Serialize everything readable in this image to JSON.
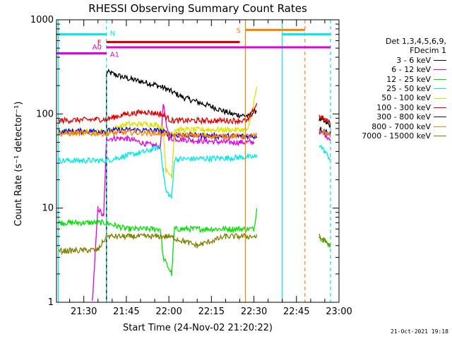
{
  "chart_data": {
    "type": "line",
    "title": "RHESSI Observing Summary Count Rates",
    "xlabel": "Start Time (24-Nov-02 21:20:22)",
    "ylabel": "Count Rate (s⁻¹ detector⁻¹)",
    "xscale": "time",
    "yscale": "log",
    "xlim": [
      "21:20:22",
      "23:00:00"
    ],
    "ylim": [
      1,
      1000
    ],
    "x_ticks": [
      "21:30",
      "21:45",
      "22:00",
      "22:15",
      "22:30",
      "22:45",
      "23:00"
    ],
    "y_ticks": [
      "1",
      "10",
      "100",
      "1000"
    ],
    "grid": false,
    "legend_position": "right",
    "legend_title": [
      "Det 1,3,4,5,6,9,",
      "FDecim 1"
    ],
    "series": [
      {
        "name": "3 - 6 keV",
        "color": "#000000",
        "points": [
          [
            "21:38",
            1
          ],
          [
            "21:38",
            280
          ],
          [
            "21:45",
            240
          ],
          [
            "21:55",
            205
          ],
          [
            "21:59",
            185
          ],
          [
            "22:05",
            150
          ],
          [
            "22:15",
            120
          ],
          [
            "22:22",
            100
          ],
          [
            "22:28",
            95
          ],
          [
            "22:31",
            110
          ],
          [
            "22:53",
            88
          ],
          [
            "22:57",
            75
          ]
        ]
      },
      {
        "name": "6 - 12 keV",
        "color": "#e000e0",
        "points": [
          [
            "21:33",
            1
          ],
          [
            "21:35",
            10
          ],
          [
            "21:37",
            8
          ],
          [
            "21:38",
            55
          ],
          [
            "21:45",
            55
          ],
          [
            "21:52",
            48
          ],
          [
            "21:57",
            45
          ],
          [
            "21:58",
            125
          ],
          [
            "22:00",
            55
          ],
          [
            "22:10",
            52
          ],
          [
            "22:20",
            50
          ],
          [
            "22:30",
            50
          ],
          [
            "22:53",
            65
          ],
          [
            "22:57",
            55
          ]
        ]
      },
      {
        "name": "12 - 25 keV",
        "color": "#00e000",
        "points": [
          [
            "21:21",
            7
          ],
          [
            "21:38",
            7
          ],
          [
            "21:45",
            6
          ],
          [
            "21:57",
            6
          ],
          [
            "21:58",
            3
          ],
          [
            "22:01",
            2
          ],
          [
            "22:02",
            6
          ],
          [
            "22:30",
            6
          ],
          [
            "22:31",
            10
          ],
          [
            "22:53",
            5
          ],
          [
            "22:57",
            4
          ]
        ]
      },
      {
        "name": "25 - 50 keV",
        "color": "#00e8e8",
        "points": [
          [
            "21:21",
            32
          ],
          [
            "21:38",
            32
          ],
          [
            "21:45",
            36
          ],
          [
            "21:52",
            40
          ],
          [
            "21:57",
            45
          ],
          [
            "21:58",
            25
          ],
          [
            "21:59",
            15
          ],
          [
            "22:01",
            13
          ],
          [
            "22:02",
            33
          ],
          [
            "22:20",
            34
          ],
          [
            "22:31",
            35
          ],
          [
            "22:53",
            48
          ],
          [
            "22:57",
            33
          ]
        ]
      },
      {
        "name": "50 - 100 keV",
        "color": "#e0e000",
        "points": [
          [
            "21:21",
            64
          ],
          [
            "21:38",
            65
          ],
          [
            "21:45",
            78
          ],
          [
            "21:55",
            78
          ],
          [
            "21:58",
            70
          ],
          [
            "21:59",
            25
          ],
          [
            "22:01",
            22
          ],
          [
            "22:02",
            68
          ],
          [
            "22:28",
            68
          ],
          [
            "22:31",
            190
          ],
          [
            "22:53",
            70
          ],
          [
            "22:57",
            60
          ]
        ]
      },
      {
        "name": "100 - 300 keV",
        "color": "#e00000",
        "points": [
          [
            "21:21",
            85
          ],
          [
            "21:38",
            88
          ],
          [
            "21:45",
            100
          ],
          [
            "21:52",
            105
          ],
          [
            "21:57",
            100
          ],
          [
            "22:01",
            85
          ],
          [
            "22:10",
            85
          ],
          [
            "22:28",
            85
          ],
          [
            "22:31",
            130
          ],
          [
            "22:53",
            95
          ],
          [
            "22:57",
            80
          ]
        ]
      },
      {
        "name": "300 - 800 keV",
        "color": "#0000e0",
        "points": [
          [
            "21:21",
            65
          ],
          [
            "21:38",
            66
          ],
          [
            "21:45",
            68
          ],
          [
            "21:57",
            66
          ],
          [
            "22:01",
            60
          ],
          [
            "22:20",
            58
          ],
          [
            "22:31",
            58
          ],
          [
            "22:53",
            70
          ],
          [
            "22:57",
            62
          ]
        ]
      },
      {
        "name": "800 - 7000 keV",
        "color": "#ff8000",
        "points": [
          [
            "21:21",
            62
          ],
          [
            "21:38",
            62
          ],
          [
            "21:45",
            64
          ],
          [
            "21:57",
            62
          ],
          [
            "22:01",
            60
          ],
          [
            "22:20",
            58
          ],
          [
            "22:31",
            58
          ],
          [
            "22:53",
            66
          ],
          [
            "22:57",
            60
          ]
        ]
      },
      {
        "name": "7000 - 15000 keV",
        "color": "#808000",
        "points": [
          [
            "21:21",
            3.5
          ],
          [
            "21:35",
            3.6
          ],
          [
            "21:38",
            5
          ],
          [
            "21:45",
            5
          ],
          [
            "22:00",
            5
          ],
          [
            "22:10",
            4
          ],
          [
            "22:20",
            5
          ],
          [
            "22:31",
            5
          ],
          [
            "22:53",
            5
          ],
          [
            "22:57",
            4
          ]
        ]
      }
    ],
    "state_bars": [
      {
        "label": "N",
        "color": "#00e8e8",
        "y": 700,
        "segments": [
          [
            "21:20:22",
            "21:38"
          ],
          [
            "22:40",
            "22:57"
          ]
        ]
      },
      {
        "label": "S",
        "color": "#ff8000",
        "y": 780,
        "segments": [
          [
            "22:27",
            "22:48"
          ]
        ]
      },
      {
        "label": "F",
        "color": "#e00000",
        "y": 580,
        "segments": [
          [
            "21:38",
            "22:25"
          ]
        ]
      },
      {
        "label": "A0",
        "color": "#e000e0",
        "y": 510,
        "segments": [
          [
            "21:38",
            "22:57"
          ]
        ]
      },
      {
        "label": "A1",
        "color": "#e000e0",
        "y": 440,
        "segments": [
          [
            "21:20:22",
            "21:38"
          ]
        ]
      }
    ],
    "vlines": [
      {
        "time": "21:21",
        "color": "#00e8e8",
        "dash": false
      },
      {
        "time": "21:38",
        "color": "#00e8e8",
        "dash": true
      },
      {
        "time": "22:27",
        "color": "#ff8000",
        "dash": false
      },
      {
        "time": "22:40",
        "color": "#00e8e8",
        "dash": false
      },
      {
        "time": "22:48",
        "color": "#ff8000",
        "dash": true
      },
      {
        "time": "22:57",
        "color": "#00e8e8",
        "dash": true
      }
    ],
    "gaps": [
      [
        "22:31",
        "22:53"
      ]
    ]
  },
  "footer": {
    "timestamp": "21-Oct-2021 19:18"
  }
}
